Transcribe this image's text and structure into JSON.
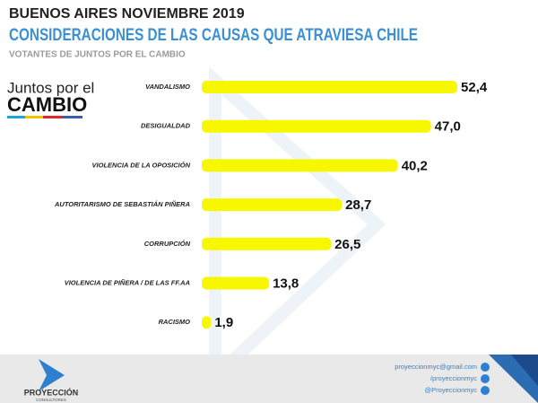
{
  "chart_data": {
    "type": "bar",
    "orientation": "horizontal",
    "title": "BUENOS AIRES NOVIEMBRE 2019",
    "subtitle": "CONSIDERACIONES DE LAS CAUSAS QUE ATRAVIESA CHILE",
    "caption": "VOTANTES DE JUNTOS POR EL CAMBIO",
    "categories": [
      "VANDALISMO",
      "DESIGUALDAD",
      "VIOLENCIA DE LA OPOSICIÓN",
      "AUTORITARISMO DE SEBASTIÁN PIÑERA",
      "CORRUPCIÓN",
      "VIOLENCIA DE PIÑERA / DE LAS FF.AA",
      "RACISMO"
    ],
    "values": [
      52.4,
      47.0,
      40.2,
      28.7,
      26.5,
      13.8,
      1.9
    ],
    "value_labels": [
      "52,4",
      "47,0",
      "40,2",
      "28,7",
      "26,5",
      "13,8",
      "1,9"
    ],
    "color": "#f7f700"
  },
  "logo": {
    "line1": "Juntos por el",
    "line2": "CAMBIO"
  },
  "footer": {
    "brand": "PROYECCIÓN",
    "brand_sub": "CONSULTORES",
    "contacts": [
      "proyeccionmyc@gmail.com",
      "/proyeccionmyc",
      "@Proyeccionmyc"
    ]
  }
}
